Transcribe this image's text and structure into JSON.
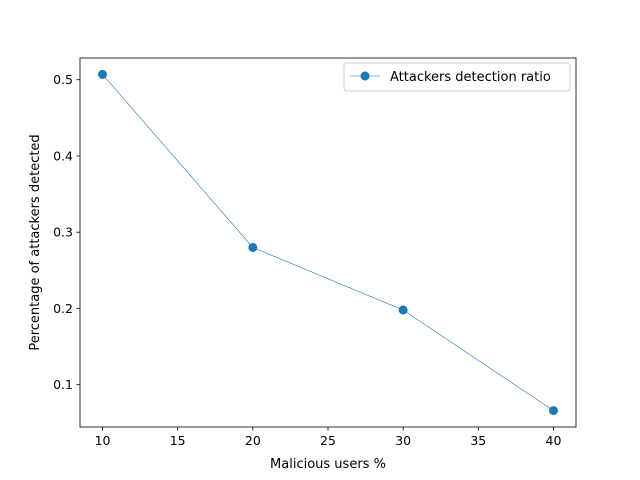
{
  "chart_data": {
    "type": "line",
    "title": "",
    "xlabel": "Malicious users %",
    "ylabel": "Percentage of attackers detected",
    "xlim": [
      8.5,
      41.5
    ],
    "ylim": [
      0.0445,
      0.5285
    ],
    "x_ticks": [
      10,
      15,
      20,
      25,
      30,
      35,
      40
    ],
    "y_ticks": [
      0.1,
      0.2,
      0.3,
      0.4,
      0.5
    ],
    "x_tick_labels": [
      "10",
      "15",
      "20",
      "25",
      "30",
      "35",
      "40"
    ],
    "y_tick_labels": [
      "0.1",
      "0.2",
      "0.3",
      "0.4",
      "0.5"
    ],
    "grid": false,
    "legend_position": "upper right",
    "series": [
      {
        "name": "Attackers detection ratio",
        "color": "#1f77b4",
        "marker": "circle",
        "x": [
          10,
          20,
          30,
          40
        ],
        "y": [
          0.507,
          0.28,
          0.198,
          0.066
        ]
      }
    ]
  }
}
